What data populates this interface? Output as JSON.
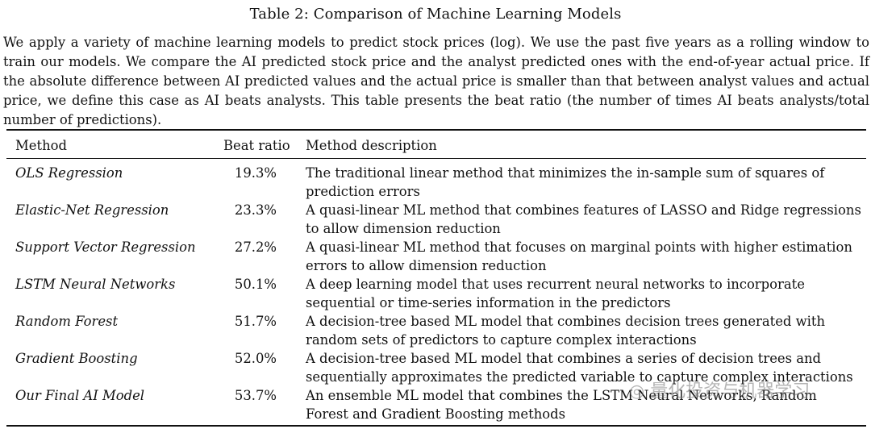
{
  "table": {
    "caption": "Table 2: Comparison of Machine Learning Models",
    "intro": "We apply a variety of machine learning models to predict stock prices (log). We use the past five years as a rolling window to train our models. We compare the AI predicted stock price and the analyst predicted ones with the end-of-year actual price. If the absolute difference between AI predicted values and the actual price is smaller than that between analyst values and actual price, we define this case as AI beats analysts. This table presents the beat ratio (the number of times AI beats analysts/total number of predictions).",
    "headers": {
      "method": "Method",
      "beat_ratio": "Beat ratio",
      "description": "Method description"
    },
    "rows": [
      {
        "method": "OLS Regression",
        "beat_ratio": "19.3%",
        "description": "The traditional linear method that minimizes the in-sample sum of squares of prediction errors"
      },
      {
        "method": "Elastic-Net Regression",
        "beat_ratio": "23.3%",
        "description": "A quasi-linear ML method that combines features of LASSO and Ridge regressions to allow dimension reduction"
      },
      {
        "method": "Support Vector Regression",
        "beat_ratio": "27.2%",
        "description": "A quasi-linear ML method that focuses on marginal points with higher estimation errors to allow dimension reduction"
      },
      {
        "method": "LSTM Neural Networks",
        "beat_ratio": "50.1%",
        "description": "A deep learning model that uses recurrent neural networks to incorporate sequential or time-series information in the predictors"
      },
      {
        "method": "Random Forest",
        "beat_ratio": "51.7%",
        "description": "A decision-tree based ML model that combines decision trees generated with random sets of predictors to capture complex interactions"
      },
      {
        "method": "Gradient Boosting",
        "beat_ratio": "52.0%",
        "description": "A decision-tree based ML model that combines a series of decision trees and sequentially approximates the predicted variable to capture complex interactions"
      },
      {
        "method": "Our Final AI Model",
        "beat_ratio": "53.7%",
        "description": "An ensemble ML model that combines the LSTM Neural Networks, Random Forest and Gradient Boosting methods"
      }
    ]
  },
  "watermark": {
    "text": "量化投资与机器学习"
  }
}
